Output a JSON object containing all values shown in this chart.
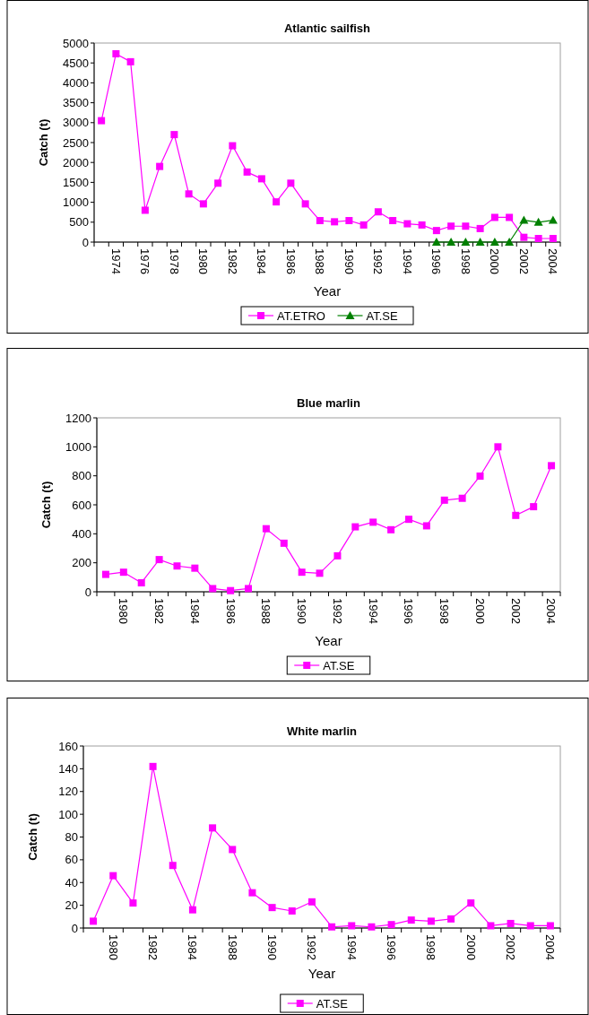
{
  "chart_data": [
    {
      "type": "line",
      "title": "Atlantic sailfish",
      "xlabel": "Year",
      "ylabel": "Catch (t)",
      "categories": [
        null,
        "1974",
        null,
        "1976",
        null,
        "1978",
        null,
        "1980",
        null,
        "1982",
        null,
        "1984",
        null,
        "1986",
        null,
        "1988",
        null,
        "1990",
        null,
        "1992",
        null,
        "1994",
        null,
        "1996",
        null,
        "1998",
        null,
        "2000",
        null,
        "2002",
        null,
        "2004"
      ],
      "ylim": [
        0,
        5000
      ],
      "yticks": [
        0,
        500,
        1000,
        1500,
        2000,
        2500,
        3000,
        3500,
        4000,
        4500,
        5000
      ],
      "grid": false,
      "legend": "bottom",
      "series": [
        {
          "name": "AT.ETRO",
          "color": "#ff00ff",
          "marker": "square",
          "values": [
            3050,
            4730,
            4530,
            800,
            1900,
            2700,
            1210,
            960,
            1480,
            2420,
            1760,
            1590,
            1010,
            1480,
            960,
            540,
            510,
            540,
            430,
            760,
            540,
            460,
            430,
            290,
            400,
            400,
            340,
            620,
            620,
            120,
            90,
            90
          ]
        },
        {
          "name": "AT.SE",
          "color": "#008000",
          "marker": "triangle",
          "values": [
            null,
            null,
            null,
            null,
            null,
            null,
            null,
            null,
            null,
            null,
            null,
            null,
            null,
            null,
            null,
            null,
            null,
            null,
            null,
            null,
            null,
            null,
            null,
            0,
            0,
            0,
            0,
            0,
            0,
            550,
            500,
            550
          ]
        }
      ]
    },
    {
      "type": "line",
      "title": "Blue marlin",
      "xlabel": "Year",
      "ylabel": "Catch (t)",
      "categories": [
        null,
        "1980",
        null,
        "1982",
        null,
        "1984",
        null,
        "1986",
        null,
        "1988",
        null,
        "1990",
        null,
        "1992",
        null,
        "1994",
        null,
        "1996",
        null,
        "1998",
        null,
        "2000",
        null,
        "2002",
        null,
        "2004"
      ],
      "ylim": [
        0,
        1200
      ],
      "yticks": [
        0,
        200,
        400,
        600,
        800,
        1000,
        1200
      ],
      "grid": false,
      "legend": "bottom",
      "series": [
        {
          "name": "AT.SE",
          "color": "#ff00ff",
          "marker": "square",
          "values": [
            120,
            135,
            62,
            222,
            178,
            163,
            22,
            8,
            22,
            435,
            335,
            135,
            128,
            248,
            448,
            480,
            428,
            500,
            455,
            632,
            645,
            798,
            1000,
            527,
            587,
            870
          ]
        }
      ]
    },
    {
      "type": "line",
      "title": "White marlin",
      "xlabel": "Year",
      "ylabel": "Catch (t)",
      "categories": [
        null,
        "1980",
        null,
        "1982",
        null,
        "1984",
        null,
        "1988",
        null,
        "1990",
        null,
        "1992",
        null,
        "1994",
        null,
        "1996",
        null,
        "1998",
        null,
        "2000",
        null,
        "2002",
        null,
        "2004"
      ],
      "ylim": [
        0,
        160
      ],
      "yticks": [
        0,
        20,
        40,
        60,
        80,
        100,
        120,
        140,
        160
      ],
      "grid": false,
      "legend": "bottom",
      "series": [
        {
          "name": "AT.SE",
          "color": "#ff00ff",
          "marker": "square",
          "values": [
            6,
            46,
            22,
            142,
            55,
            16,
            88,
            69,
            31,
            18,
            15,
            23,
            1,
            2,
            1,
            3,
            7,
            6,
            8,
            22,
            2,
            4,
            2,
            2
          ]
        }
      ]
    }
  ]
}
